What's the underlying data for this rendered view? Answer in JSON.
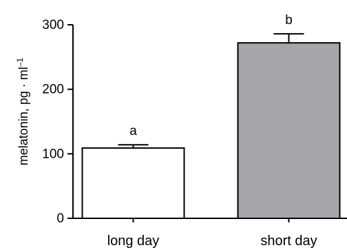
{
  "chart_data": {
    "type": "bar",
    "title": "",
    "xlabel": "",
    "ylabel": "melatonin, pg · ml",
    "ylabel_superscript": "–1",
    "categories": [
      "long day",
      "short day"
    ],
    "values": [
      109,
      272
    ],
    "errors": [
      5,
      14
    ],
    "significance_letters": [
      "a",
      "b"
    ],
    "bar_colors": [
      "#ffffff",
      "#a6a5aa"
    ],
    "ylim": [
      0,
      300
    ],
    "yticks": [
      0,
      100,
      200,
      300
    ],
    "grid": false,
    "legend": "none"
  }
}
